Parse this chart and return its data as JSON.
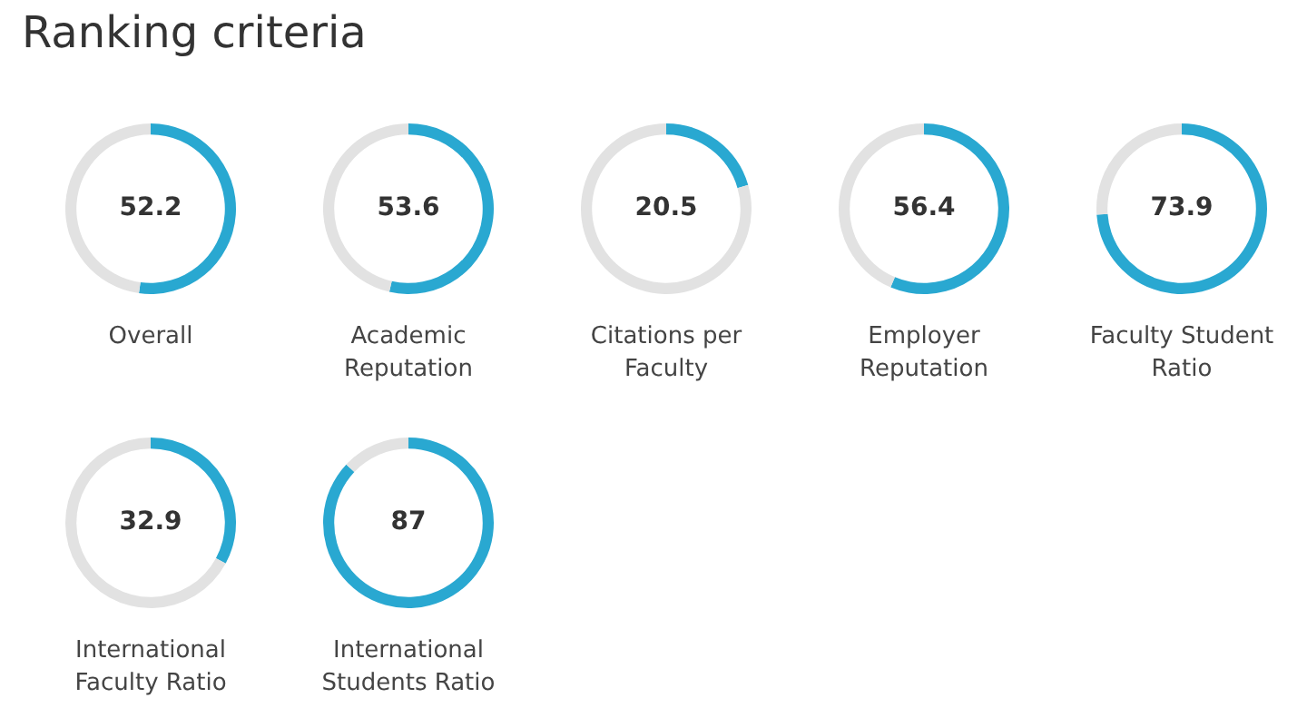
{
  "chart_data": [
    {
      "type": "other",
      "title": "Ranking criteria"
    },
    {
      "type": "donut",
      "title": "Overall",
      "categories": [
        null,
        null
      ],
      "values": [
        52.2,
        47.8
      ],
      "colors": [
        "#29a8d1",
        "#e2e2e2"
      ],
      "value_labels": [
        "52.2",
        null
      ]
    },
    {
      "type": "donut",
      "title": "Academic Reputation",
      "categories": [
        null,
        null
      ],
      "values": [
        53.6,
        46.4
      ],
      "colors": [
        "#29a8d1",
        "#e2e2e2"
      ],
      "value_labels": [
        "53.6",
        null
      ]
    },
    {
      "type": "donut",
      "title": "Citations per Faculty",
      "categories": [
        null,
        null
      ],
      "values": [
        20.5,
        79.5
      ],
      "colors": [
        "#29a8d1",
        "#e2e2e2"
      ],
      "value_labels": [
        "20.5",
        null
      ]
    },
    {
      "type": "donut",
      "title": "Employer Reputation",
      "categories": [
        null,
        null
      ],
      "values": [
        56.4,
        43.6
      ],
      "colors": [
        "#29a8d1",
        "#e2e2e2"
      ],
      "value_labels": [
        "56.4",
        null
      ]
    },
    {
      "type": "donut",
      "title": "Faculty Student Ratio",
      "categories": [
        null,
        null
      ],
      "values": [
        73.9,
        26.1
      ],
      "colors": [
        "#29a8d1",
        "#e2e2e2"
      ],
      "value_labels": [
        "73.9",
        null
      ]
    },
    {
      "type": "donut",
      "title": "International Faculty Ratio",
      "categories": [
        null,
        null
      ],
      "values": [
        32.9,
        67.1
      ],
      "colors": [
        "#29a8d1",
        "#e2e2e2"
      ],
      "value_labels": [
        "32.9",
        null
      ]
    },
    {
      "type": "donut",
      "title": "International Students Ratio",
      "categories": [
        null,
        null
      ],
      "values": [
        87,
        13
      ],
      "colors": [
        "#29a8d1",
        "#e2e2e2"
      ],
      "value_labels": [
        "87",
        null
      ]
    }
  ]
}
